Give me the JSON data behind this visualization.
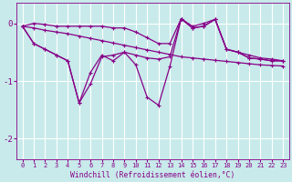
{
  "background_color": "#c8eaea",
  "grid_color": "#ffffff",
  "line_color": "#880088",
  "xlim": [
    -0.5,
    23.5
  ],
  "ylim": [
    -2.35,
    0.35
  ],
  "xlabel": "Windchill (Refroidissement éolien,°C)",
  "yticks": [
    0,
    -1,
    -2
  ],
  "xticks": [
    0,
    1,
    2,
    3,
    4,
    5,
    6,
    7,
    8,
    9,
    10,
    11,
    12,
    13,
    14,
    15,
    16,
    17,
    18,
    19,
    20,
    21,
    22,
    23
  ],
  "s1_x": [
    0,
    1,
    2,
    3,
    4,
    5,
    6,
    7,
    8,
    9,
    10,
    11,
    12,
    13,
    14,
    15,
    16,
    17,
    18,
    19,
    20,
    21,
    22,
    23
  ],
  "s1_y": [
    -0.05,
    0.0,
    -0.02,
    -0.05,
    -0.05,
    -0.05,
    -0.05,
    -0.05,
    -0.08,
    -0.08,
    -0.15,
    -0.25,
    -0.35,
    -0.35,
    0.08,
    -0.05,
    0.0,
    0.07,
    -0.45,
    -0.5,
    -0.55,
    -0.6,
    -0.62,
    -0.65
  ],
  "s2_x": [
    0,
    1,
    2,
    3,
    4,
    5,
    6,
    7,
    8,
    9,
    10,
    11,
    12,
    13,
    14,
    15,
    16,
    17,
    18,
    19,
    20,
    21,
    22,
    23
  ],
  "s2_y": [
    -0.05,
    -0.08,
    -0.12,
    -0.15,
    -0.18,
    -0.22,
    -0.26,
    -0.3,
    -0.34,
    -0.38,
    -0.42,
    -0.46,
    -0.5,
    -0.54,
    -0.58,
    -0.6,
    -0.62,
    -0.64,
    -0.66,
    -0.68,
    -0.7,
    -0.72,
    -0.73,
    -0.74
  ],
  "s3_x": [
    0,
    1,
    2,
    3,
    4,
    5,
    6,
    7,
    8,
    9,
    10,
    11,
    12,
    13,
    14,
    15,
    16,
    17,
    18,
    19,
    20,
    21,
    22,
    23
  ],
  "s3_y": [
    -0.05,
    -0.35,
    -0.45,
    -0.55,
    -0.65,
    -1.38,
    -0.85,
    -0.55,
    -0.65,
    -0.5,
    -0.55,
    -0.6,
    -0.62,
    -0.58,
    0.08,
    -0.08,
    -0.05,
    0.07,
    -0.45,
    -0.5,
    -0.6,
    -0.62,
    -0.65,
    -0.65
  ],
  "s4_x": [
    0,
    1,
    2,
    3,
    4,
    5,
    6,
    7,
    8,
    9,
    10,
    11,
    12,
    13,
    14,
    15,
    16,
    17,
    18,
    19,
    20,
    21,
    22,
    23
  ],
  "s4_y": [
    -0.05,
    -0.35,
    -0.45,
    -0.55,
    -0.65,
    -1.38,
    -1.05,
    -0.58,
    -0.55,
    -0.5,
    -0.72,
    -1.28,
    -1.42,
    -0.75,
    0.08,
    -0.08,
    -0.05,
    0.07,
    -0.45,
    -0.5,
    -0.6,
    -0.62,
    -0.65,
    -0.65
  ]
}
